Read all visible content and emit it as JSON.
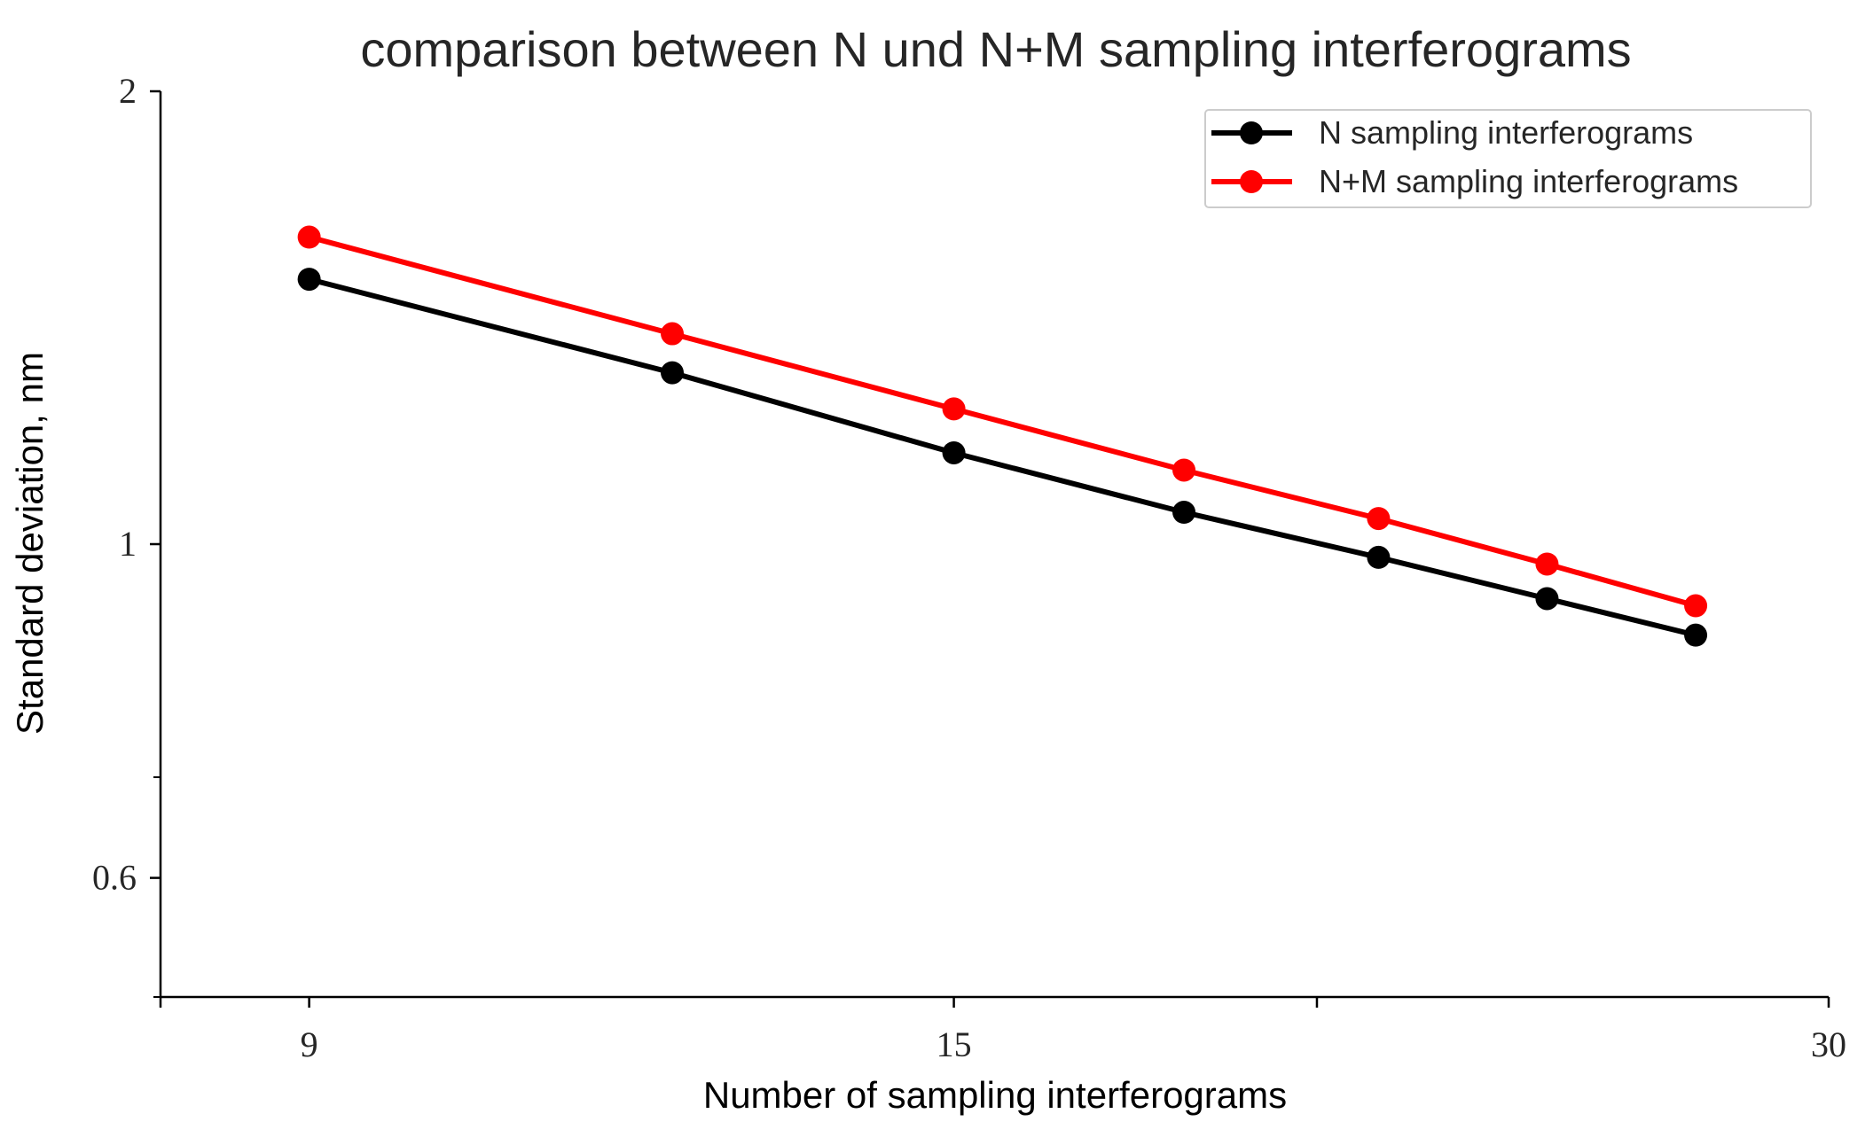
{
  "chart_data": {
    "type": "line",
    "title": "comparison between N und N+M sampling interferograms",
    "xlabel": "Number of sampling interferograms",
    "ylabel": "Standard deviation, nm",
    "x_scale": "log",
    "y_scale": "log",
    "xlim": [
      8.0,
      30
    ],
    "ylim": [
      0.5,
      2
    ],
    "x_ticks": [
      9,
      15,
      30
    ],
    "x_minor_ticks": [
      20
    ],
    "y_ticks": [
      0.6,
      1,
      2
    ],
    "y_ticks_unlabeled": [
      0.5,
      0.7
    ],
    "legend": "top-right",
    "grid": false,
    "series": [
      {
        "name": "N sampling interferograms",
        "color": "#000000",
        "x": [
          9,
          12,
          15,
          18,
          21,
          24,
          27
        ],
        "y": [
          1.5,
          1.3,
          1.15,
          1.05,
          0.98,
          0.92,
          0.87
        ]
      },
      {
        "name": "N+M sampling interferograms",
        "color": "#ff0000",
        "x": [
          9,
          12,
          15,
          18,
          21,
          24,
          27
        ],
        "y": [
          1.6,
          1.38,
          1.23,
          1.12,
          1.04,
          0.97,
          0.91
        ]
      }
    ]
  }
}
